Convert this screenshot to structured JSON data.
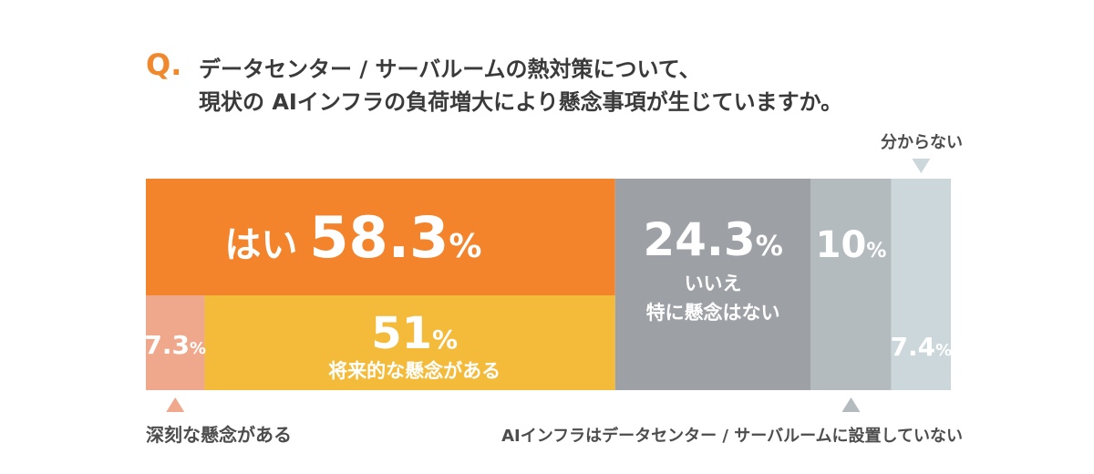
{
  "question": {
    "mark": "Q.",
    "line1": "データセンター / サーバルームの熱対策について、",
    "line2": "現状の AIインフラの負荷増大により懸念事項が生じていますか。"
  },
  "chart_data": {
    "type": "bar",
    "orientation": "horizontal-stacked",
    "unit": "%",
    "segments": [
      {
        "id": "yes",
        "label": "はい",
        "value": 58.3,
        "value_text": "58.3",
        "color": "#f4842b",
        "subsegments": [
          {
            "id": "serious",
            "label": "深刻な懸念がある",
            "value": 7.3,
            "value_text": "7.3",
            "color": "#f0a88c"
          },
          {
            "id": "future",
            "label": "将来的な懸念がある",
            "value": 51,
            "value_text": "51",
            "color": "#f4bb3b"
          }
        ]
      },
      {
        "id": "no",
        "label_lines": [
          "いいえ",
          "特に懸念はない"
        ],
        "value": 24.3,
        "value_text": "24.3",
        "color": "#9da1a6"
      },
      {
        "id": "not_installed",
        "label": "AIインフラはデータセンター / サーバルームに設置していない",
        "value": 10,
        "value_text": "10",
        "color": "#b4bbbf"
      },
      {
        "id": "unknown",
        "label": "分からない",
        "value": 7.4,
        "value_text": "7.4",
        "color": "#cbd7db"
      }
    ]
  }
}
